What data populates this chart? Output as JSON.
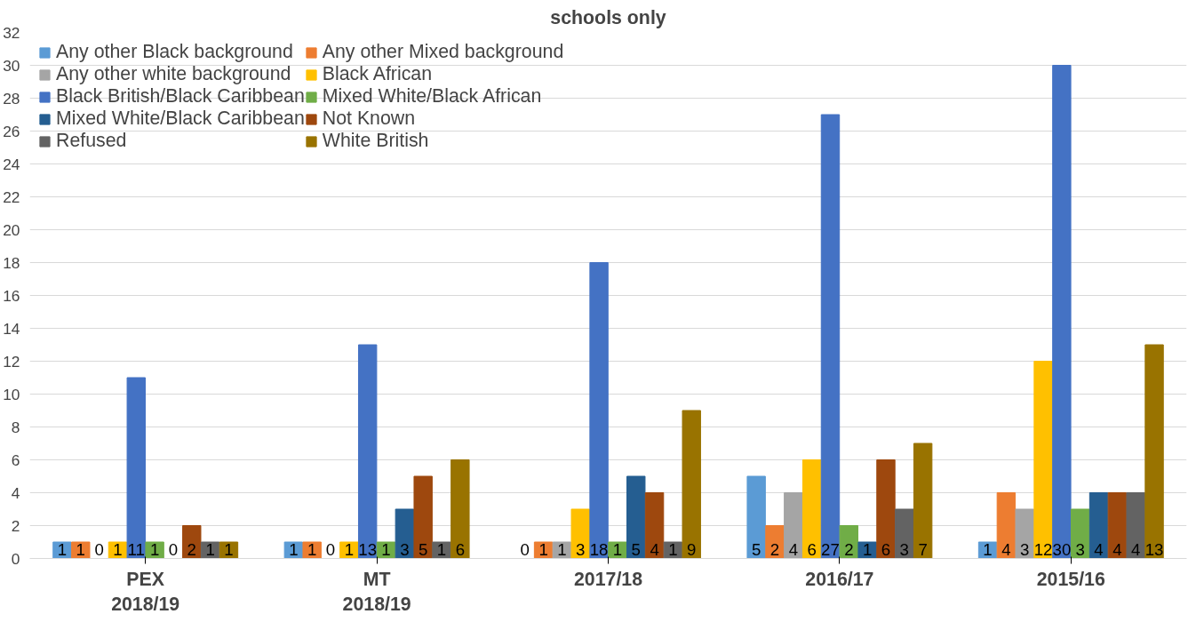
{
  "chart_data": {
    "type": "bar",
    "title": "schools only",
    "categories": [
      "PEX\n2018/19",
      "MT\n2018/19",
      "2017/18",
      "2016/17",
      "2015/16"
    ],
    "series": [
      {
        "name": "Any other Black background",
        "color": "#5b9bd5",
        "values": [
          1,
          1,
          0,
          5,
          1
        ]
      },
      {
        "name": "Any other Mixed background",
        "color": "#ed7d31",
        "values": [
          1,
          1,
          1,
          2,
          4
        ]
      },
      {
        "name": "Any other white background",
        "color": "#a5a5a5",
        "values": [
          0,
          0,
          1,
          4,
          3
        ]
      },
      {
        "name": "Black African",
        "color": "#ffc000",
        "values": [
          1,
          1,
          3,
          6,
          12
        ]
      },
      {
        "name": "Black British/Black Caribbean",
        "color": "#4472c4",
        "values": [
          11,
          13,
          18,
          27,
          30
        ]
      },
      {
        "name": "Mixed White/Black African",
        "color": "#70ad47",
        "values": [
          1,
          1,
          1,
          2,
          3
        ]
      },
      {
        "name": "Mixed White/Black Caribbean",
        "color": "#255e91",
        "values": [
          0,
          3,
          5,
          1,
          4
        ]
      },
      {
        "name": "Not Known",
        "color": "#9e480e",
        "values": [
          2,
          5,
          4,
          6,
          4
        ]
      },
      {
        "name": "Refused",
        "color": "#636363",
        "values": [
          1,
          1,
          1,
          3,
          4
        ]
      },
      {
        "name": "White British",
        "color": "#997300",
        "values": [
          1,
          6,
          9,
          7,
          13
        ]
      }
    ],
    "ylim": [
      0,
      32
    ],
    "yticks": [
      0,
      2,
      4,
      6,
      8,
      10,
      12,
      14,
      16,
      18,
      20,
      22,
      24,
      26,
      28,
      30,
      32
    ],
    "grid": "y",
    "legend": "top left",
    "data_labels": true
  }
}
